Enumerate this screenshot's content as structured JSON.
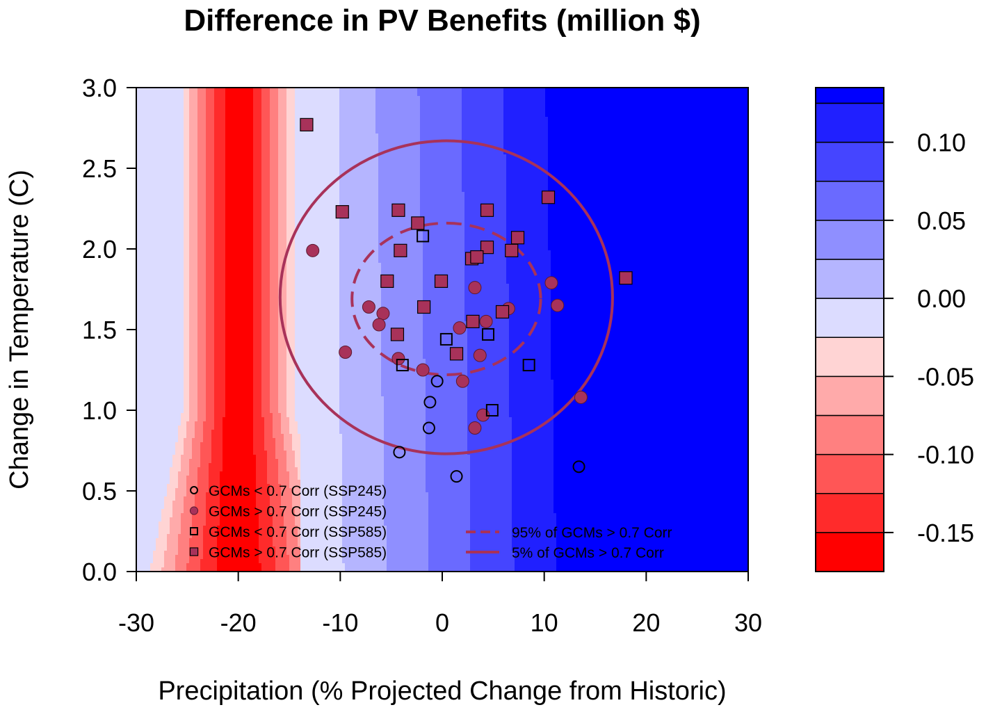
{
  "chart_data": {
    "type": "contour",
    "title": "Difference in PV Benefits (million $)",
    "xlabel": "Precipitation (% Projected Change from Historic)",
    "ylabel": "Change in Temperature (C)",
    "xlim": [
      -30,
      30
    ],
    "ylim": [
      0,
      3
    ],
    "x_ticks": [
      "-30",
      "-20",
      "-10",
      "0",
      "10",
      "20",
      "30"
    ],
    "y_ticks": [
      "0.0",
      "0.5",
      "1.0",
      "1.5",
      "2.0",
      "2.5",
      "3.0"
    ],
    "colorbar": {
      "levels": [
        -0.175,
        -0.15,
        -0.125,
        -0.1,
        -0.075,
        -0.05,
        -0.025,
        0.0,
        0.025,
        0.05,
        0.075,
        0.1,
        0.125,
        0.135
      ],
      "colors": [
        "#ff0000",
        "#ff2b2b",
        "#ff5656",
        "#ff8080",
        "#ffaaaa",
        "#ffd4d4",
        "#dcdcff",
        "#b5b5ff",
        "#8f8fff",
        "#6a6aff",
        "#4545ff",
        "#2020ff",
        "#0000ff"
      ],
      "tick_values": [
        -0.15,
        -0.1,
        -0.05,
        0.0,
        0.05,
        0.1
      ],
      "tick_labels": [
        "-0.15",
        "-0.10",
        "-0.05",
        "0.00",
        "0.05",
        "0.10"
      ]
    },
    "series": [
      {
        "name": "GCMs < 0.7 Corr (SSP245)",
        "marker": "open-circle",
        "points": [
          [
            -0.5,
            1.18
          ],
          [
            -1.2,
            1.05
          ],
          [
            -1.3,
            0.89
          ],
          [
            -4.2,
            0.74
          ],
          [
            1.4,
            0.59
          ],
          [
            13.4,
            0.65
          ]
        ]
      },
      {
        "name": "GCMs > 0.7 Corr (SSP245)",
        "marker": "filled-circle",
        "points": [
          [
            -12.7,
            1.99
          ],
          [
            -9.5,
            1.36
          ],
          [
            -7.2,
            1.64
          ],
          [
            -5.8,
            1.6
          ],
          [
            -6.2,
            1.53
          ],
          [
            -4.3,
            1.32
          ],
          [
            -1.9,
            1.25
          ],
          [
            1.7,
            1.51
          ],
          [
            2.0,
            1.18
          ],
          [
            3.7,
            1.34
          ],
          [
            4.3,
            1.55
          ],
          [
            3.2,
            1.76
          ],
          [
            6.5,
            1.63
          ],
          [
            10.7,
            1.79
          ],
          [
            11.3,
            1.65
          ],
          [
            13.6,
            1.08
          ],
          [
            4.0,
            0.97
          ],
          [
            3.2,
            0.89
          ]
        ]
      },
      {
        "name": "GCMs < 0.7 Corr (SSP585)",
        "marker": "open-square",
        "points": [
          [
            -1.9,
            2.08
          ],
          [
            0.4,
            1.44
          ],
          [
            4.5,
            1.47
          ],
          [
            -3.9,
            1.28
          ],
          [
            4.9,
            1.0
          ],
          [
            8.5,
            1.28
          ]
        ]
      },
      {
        "name": "GCMs > 0.7 Corr (SSP585)",
        "marker": "filled-square",
        "points": [
          [
            -13.3,
            2.77
          ],
          [
            -9.8,
            2.23
          ],
          [
            -4.3,
            2.24
          ],
          [
            -2.4,
            2.16
          ],
          [
            4.4,
            2.24
          ],
          [
            10.4,
            2.32
          ],
          [
            -4.1,
            1.99
          ],
          [
            4.4,
            2.01
          ],
          [
            6.8,
            1.99
          ],
          [
            7.4,
            2.07
          ],
          [
            2.9,
            1.94
          ],
          [
            3.4,
            1.95
          ],
          [
            -5.4,
            1.8
          ],
          [
            -0.1,
            1.8
          ],
          [
            -1.8,
            1.64
          ],
          [
            5.9,
            1.61
          ],
          [
            3.0,
            1.55
          ],
          [
            -4.4,
            1.47
          ],
          [
            1.4,
            1.35
          ],
          [
            18.0,
            1.82
          ]
        ]
      }
    ],
    "ellipses": [
      {
        "name": "95% of GCMs > 0.7 Corr",
        "style": "dashed",
        "center": [
          0.4,
          1.69
        ],
        "rx": 9.25,
        "ry": 0.47
      },
      {
        "name": "5% of GCMs > 0.7 Corr",
        "style": "solid",
        "center": [
          0.4,
          1.7
        ],
        "rx": 16.3,
        "ry": 0.97
      }
    ],
    "legend": {
      "position": "bottom",
      "points_entries": [
        "GCMs < 0.7 Corr (SSP245)",
        "GCMs > 0.7 Corr (SSP245)",
        "GCMs < 0.7 Corr (SSP585)",
        "GCMs > 0.7 Corr (SSP585)"
      ],
      "line_entries": [
        "95% of GCMs > 0.7 Corr",
        "5% of GCMs > 0.7 Corr"
      ]
    },
    "marker_color": "#a8325a"
  }
}
